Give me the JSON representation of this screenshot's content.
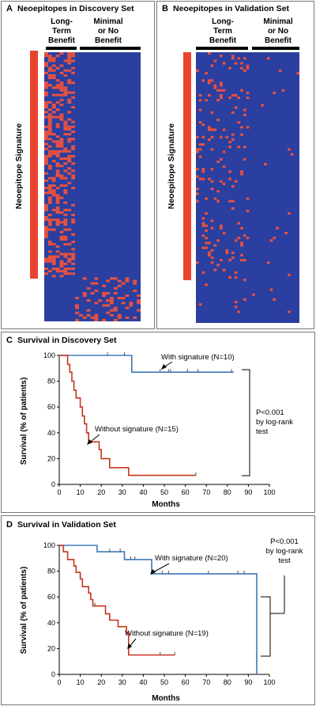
{
  "panels": {
    "a": {
      "letter": "A",
      "title": "Neoepitopes in Discovery Set",
      "group1": [
        "Long-",
        "Term",
        "Benefit"
      ],
      "group2": [
        "Minimal",
        "or No",
        "Benefit"
      ],
      "bar_label": "Neoepitope Signature"
    },
    "b": {
      "letter": "B",
      "title": "Neoepitopes in Validation Set",
      "group1": [
        "Long-",
        "Term",
        "Benefit"
      ],
      "group2": [
        "Minimal",
        "or No",
        "Benefit"
      ],
      "bar_label": "Neoepitope Signature"
    },
    "c": {
      "letter": "C",
      "title": "Survival in Discovery Set"
    },
    "d": {
      "letter": "D",
      "title": "Survival in Validation Set"
    }
  },
  "colors": {
    "heat_bg": "#2a3f9f",
    "heat_hit": "#e8513f",
    "signature_bar": "#e8432f",
    "with_line": "#3d7ab8",
    "without_line": "#c8341f",
    "ticks": "#555555"
  },
  "chart_data": [
    {
      "type": "heatmap",
      "id": "A",
      "title": "Neoepitopes in Discovery Set",
      "columns": {
        "groups": [
          "Long-Term Benefit",
          "Minimal or No Benefit"
        ]
      },
      "rows": {
        "annotation": "Neoepitope Signature"
      },
      "values": "binary matrix (red = neoepitope present, blue = absent); signature neoepitopes enriched in long-term benefit group"
    },
    {
      "type": "heatmap",
      "id": "B",
      "title": "Neoepitopes in Validation Set",
      "columns": {
        "groups": [
          "Long-Term Benefit",
          "Minimal or No Benefit"
        ]
      },
      "rows": {
        "annotation": "Neoepitope Signature"
      },
      "values": "binary matrix (red = neoepitope present, blue = absent)"
    },
    {
      "type": "line",
      "id": "C",
      "title": "Survival in Discovery Set",
      "xlabel": "Months",
      "ylabel": "Survival (% of patients)",
      "xlim": [
        0,
        100
      ],
      "ylim": [
        0,
        100
      ],
      "xticks": [
        0,
        10,
        20,
        30,
        40,
        50,
        60,
        70,
        80,
        90,
        100
      ],
      "yticks": [
        0,
        20,
        40,
        60,
        80,
        100
      ],
      "series": [
        {
          "name": "With signature (N=10)",
          "color": "#3d7ab8",
          "steps": [
            [
              0,
              100
            ],
            [
              34.5,
              100
            ],
            [
              34.5,
              87
            ],
            [
              83,
              87
            ]
          ],
          "censor": [
            23,
            31,
            48,
            52,
            53,
            61,
            66,
            82
          ]
        },
        {
          "name": "Without signature (N=15)",
          "color": "#c8341f",
          "steps": [
            [
              0,
              100
            ],
            [
              4,
              100
            ],
            [
              4,
              93
            ],
            [
              5,
              93
            ],
            [
              5,
              87
            ],
            [
              6,
              87
            ],
            [
              6,
              80
            ],
            [
              7,
              80
            ],
            [
              7,
              73
            ],
            [
              8,
              73
            ],
            [
              8,
              67
            ],
            [
              10,
              67
            ],
            [
              10,
              60
            ],
            [
              11,
              60
            ],
            [
              11,
              53
            ],
            [
              12,
              53
            ],
            [
              12,
              47
            ],
            [
              13,
              47
            ],
            [
              13,
              40
            ],
            [
              14,
              40
            ],
            [
              14,
              33
            ],
            [
              19,
              33
            ],
            [
              19,
              27
            ],
            [
              20,
              27
            ],
            [
              20,
              20
            ],
            [
              24,
              20
            ],
            [
              24,
              13
            ],
            [
              33,
              13
            ],
            [
              33,
              7
            ],
            [
              65,
              7
            ]
          ],
          "censor": [
            65
          ]
        }
      ],
      "annotation": [
        "P<0.001",
        "by log-rank",
        "test"
      ]
    },
    {
      "type": "line",
      "id": "D",
      "title": "Survival in Validation Set",
      "xlabel": "Months",
      "ylabel": "Survival (% of patients)",
      "xlim": [
        0,
        100
      ],
      "ylim": [
        0,
        100
      ],
      "xticks": [
        0,
        10,
        20,
        30,
        40,
        50,
        60,
        70,
        80,
        90,
        100
      ],
      "yticks": [
        0,
        20,
        40,
        60,
        80,
        100
      ],
      "series": [
        {
          "name": "With signature (N=20)",
          "color": "#3d7ab8",
          "steps": [
            [
              0,
              100
            ],
            [
              18,
              100
            ],
            [
              18,
              95
            ],
            [
              31,
              95
            ],
            [
              31,
              89
            ],
            [
              44,
              89
            ],
            [
              44,
              78
            ],
            [
              94,
              78
            ],
            [
              94,
              0
            ]
          ],
          "censor": [
            24,
            29,
            34,
            36,
            49,
            52,
            71,
            85,
            88
          ]
        },
        {
          "name": "Without signature (N=19)",
          "color": "#c8341f",
          "steps": [
            [
              0,
              100
            ],
            [
              2,
              100
            ],
            [
              2,
              95
            ],
            [
              4,
              95
            ],
            [
              4,
              89
            ],
            [
              7,
              89
            ],
            [
              7,
              84
            ],
            [
              8,
              84
            ],
            [
              8,
              79
            ],
            [
              10,
              79
            ],
            [
              10,
              74
            ],
            [
              11,
              74
            ],
            [
              11,
              68
            ],
            [
              14,
              68
            ],
            [
              14,
              63
            ],
            [
              15,
              63
            ],
            [
              15,
              58
            ],
            [
              16,
              58
            ],
            [
              16,
              53
            ],
            [
              22,
              53
            ],
            [
              22,
              47
            ],
            [
              24,
              47
            ],
            [
              24,
              42
            ],
            [
              28,
              42
            ],
            [
              28,
              37
            ],
            [
              32,
              37
            ],
            [
              32,
              32
            ],
            [
              33,
              32
            ],
            [
              33,
              15
            ],
            [
              55,
              15
            ]
          ],
          "censor": [
            10,
            17,
            48,
            55
          ]
        }
      ],
      "annotation": [
        "P<0.001",
        "by log-rank",
        "test"
      ]
    }
  ],
  "common": {
    "xlabel": "Months",
    "ylabel": "Survival (% of patients)",
    "with_c": "With signature (N=10)",
    "without_c": "Without signature (N=15)",
    "with_d": "With signature (N=20)",
    "without_d": "Without signature (N=19)",
    "p_lines": [
      "P<0.001",
      "by log-rank",
      "test"
    ]
  }
}
